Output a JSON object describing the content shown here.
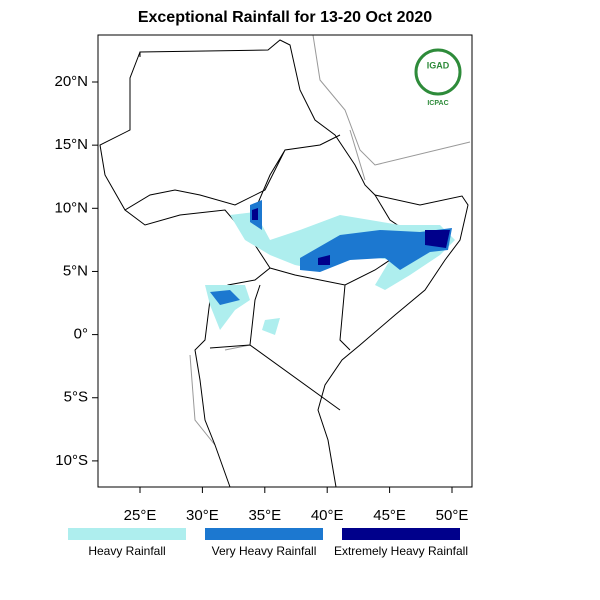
{
  "map": {
    "title": "Exceptional Rainfall for 13-20 Oct 2020",
    "lat_ticks": [
      {
        "value": 20,
        "label": "20°N"
      },
      {
        "value": 15,
        "label": "15°N"
      },
      {
        "value": 10,
        "label": "10°N"
      },
      {
        "value": 5,
        "label": "5°N"
      },
      {
        "value": 0,
        "label": "0°"
      },
      {
        "value": -5,
        "label": "5°S"
      },
      {
        "value": -10,
        "label": "10°S"
      }
    ],
    "lon_ticks": [
      {
        "value": 25,
        "label": "25°E"
      },
      {
        "value": 30,
        "label": "30°E"
      },
      {
        "value": 35,
        "label": "35°E"
      },
      {
        "value": 40,
        "label": "40°E"
      },
      {
        "value": 45,
        "label": "45°E"
      },
      {
        "value": 50,
        "label": "50°E"
      }
    ],
    "legend": [
      {
        "name": "Heavy Rainfall",
        "color": "#aeeeee"
      },
      {
        "name": "Very Heavy Rainfall",
        "color": "#1c78d0"
      },
      {
        "name": "Extremely Heavy Rainfall",
        "color": "#00008b"
      }
    ],
    "logo": {
      "top": "IGAD",
      "bottom": "ICPAC"
    }
  }
}
